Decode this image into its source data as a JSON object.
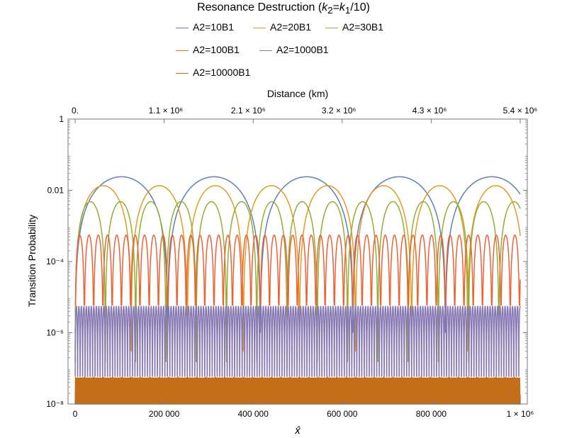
{
  "chart_data": {
    "type": "line",
    "title": "Resonance Destruction (k2=k1/10)",
    "title_parts": {
      "pre": "Resonance Destruction (",
      "k": "k",
      "sub2": "2",
      "eq": "=",
      "k1": "k",
      "sub1": "1",
      "post": "/10)"
    },
    "xlabel": "x̂",
    "ylabel": "Transition Probability",
    "x2label": "Distance (km)",
    "y_scale": "log",
    "xlim": [
      0,
      1000000
    ],
    "ylim": [
      1e-08,
      1
    ],
    "x_ticks": [
      {
        "value": 0,
        "label": "0"
      },
      {
        "value": 200000,
        "label": "200 000"
      },
      {
        "value": 400000,
        "label": "400 000"
      },
      {
        "value": 600000,
        "label": "600 000"
      },
      {
        "value": 800000,
        "label": "800 000"
      },
      {
        "value": 1000000,
        "label": "1 × 10⁶"
      }
    ],
    "x2_ticks": [
      {
        "value": 0,
        "label": "0."
      },
      {
        "value": 1100000.0,
        "label": "1.1 × 10⁶"
      },
      {
        "value": 2100000.0,
        "label": "2.1 × 10⁶"
      },
      {
        "value": 3200000.0,
        "label": "3.2 × 10⁶"
      },
      {
        "value": 4300000.0,
        "label": "4.3 × 10⁶"
      },
      {
        "value": 5400000.0,
        "label": "5.4 × 10⁶"
      }
    ],
    "x2_range": [
      0,
      5400000.0
    ],
    "y_ticks": [
      {
        "value": 1,
        "label": "1"
      },
      {
        "value": 0.01,
        "label": "0.01"
      },
      {
        "value": 0.0001,
        "label": "10⁻⁴"
      },
      {
        "value": 1e-06,
        "label": "10⁻⁶"
      },
      {
        "value": 1e-08,
        "label": "10⁻⁸"
      }
    ],
    "legend_position": "top",
    "series": [
      {
        "name": "A2=10B1",
        "color": "#5e81b5",
        "peak": 0.024,
        "period": 208000,
        "floor": 1e-06
      },
      {
        "name": "A2=20B1",
        "color": "#e19c24",
        "peak": 0.0135,
        "period": 126000,
        "floor": 3e-07
      },
      {
        "name": "A2=30B1",
        "color": "#8fb032",
        "peak": 0.0048,
        "period": 68000,
        "floor": 1.5e-07
      },
      {
        "name": "A2=100B1",
        "color": "#eb6235",
        "peak": 0.00055,
        "period": 20800,
        "floor": 6e-06
      },
      {
        "name": "A2=1000B1",
        "color": "#8778b3",
        "peak": 5.5e-06,
        "period": 5600,
        "floor": 6e-08
      },
      {
        "name": "A2=10000B1",
        "color": "#c56e1a",
        "peak": 5.5e-08,
        "period": 2100,
        "floor": 1e-08
      }
    ]
  }
}
